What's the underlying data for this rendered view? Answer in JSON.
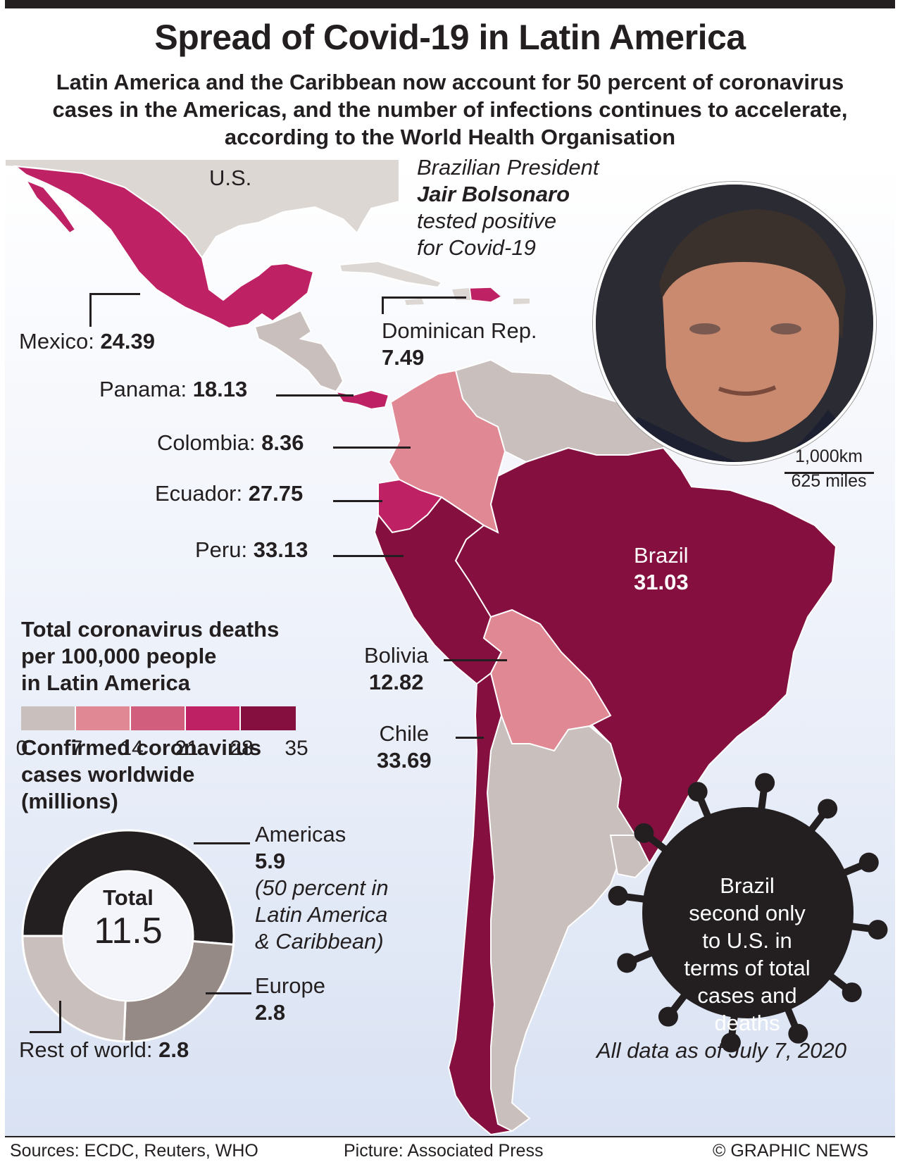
{
  "title": "Spread of Covid-19 in Latin America",
  "subtitle": "Latin America and the Caribbean now account for 50 percent of coronavirus cases in the Americas, and the number of infections continues to accelerate, according to the World Health Organisation",
  "map": {
    "us_label": "U.S.",
    "photo_caption": {
      "line1": "Brazilian President",
      "name": "Jair Bolsonaro",
      "line3": "tested positive",
      "line4": "for Covid-19"
    },
    "scale_km": "1,000km",
    "scale_miles": "625 miles",
    "colors": {
      "band_0_7": "#c9bfbc",
      "band_7_14": "#e08894",
      "band_14_21": "#d25e7d",
      "band_21_28": "#be2264",
      "band_28_35": "#85103f",
      "us_land": "#ddd7d3"
    }
  },
  "countries": [
    {
      "name": "Mexico:",
      "value": "24.39"
    },
    {
      "name": "Dominican Rep.",
      "value": "7.49"
    },
    {
      "name": "Panama:",
      "value": "18.13"
    },
    {
      "name": "Colombia:",
      "value": "8.36"
    },
    {
      "name": "Ecuador:",
      "value": "27.75"
    },
    {
      "name": "Peru:",
      "value": "33.13"
    },
    {
      "name": "Brazil",
      "value": "31.03"
    },
    {
      "name": "Bolivia",
      "value": "12.82"
    },
    {
      "name": "Chile",
      "value": "33.69"
    }
  ],
  "legend": {
    "title_lines": [
      "Total coronavirus deaths",
      "per 100,000 people",
      "in Latin America"
    ],
    "ticks": [
      "0",
      "7",
      "14",
      "21",
      "28",
      "35"
    ]
  },
  "cases": {
    "title_lines": [
      "Confirmed coronavirus",
      "cases worldwide",
      "(millions)"
    ],
    "total_label": "Total",
    "total_value": "11.5",
    "americas": {
      "name": "Americas",
      "value": "5.9",
      "note_lines": [
        "(50 percent in",
        "Latin America",
        "& Caribbean)"
      ]
    },
    "europe": {
      "name": "Europe",
      "value": "2.8"
    },
    "rest": {
      "name": "Rest of world:",
      "value": "2.8"
    }
  },
  "virus_note_lines": [
    "Brazil",
    "second only",
    "to U.S. in",
    "terms of total",
    "cases and",
    "deaths"
  ],
  "as_of": "All data as of July 7, 2020",
  "footer": {
    "sources": "Sources: ECDC, Reuters, WHO",
    "picture": "Picture: Associated Press",
    "credit": "© GRAPHIC NEWS"
  },
  "chart_data": [
    {
      "type": "bar",
      "title": "Total coronavirus deaths per 100,000 people in Latin America",
      "categories": [
        "Mexico",
        "Dominican Rep.",
        "Panama",
        "Colombia",
        "Ecuador",
        "Peru",
        "Brazil",
        "Bolivia",
        "Chile"
      ],
      "values": [
        24.39,
        7.49,
        18.13,
        8.36,
        27.75,
        33.13,
        31.03,
        12.82,
        33.69
      ],
      "ylim": [
        0,
        35
      ]
    },
    {
      "type": "pie",
      "title": "Confirmed coronavirus cases worldwide (millions)",
      "categories": [
        "Americas",
        "Europe",
        "Rest of world"
      ],
      "values": [
        5.9,
        2.8,
        2.8
      ],
      "total": 11.5,
      "colors": [
        "#231f20",
        "#958a85",
        "#c9bfbc"
      ]
    }
  ]
}
